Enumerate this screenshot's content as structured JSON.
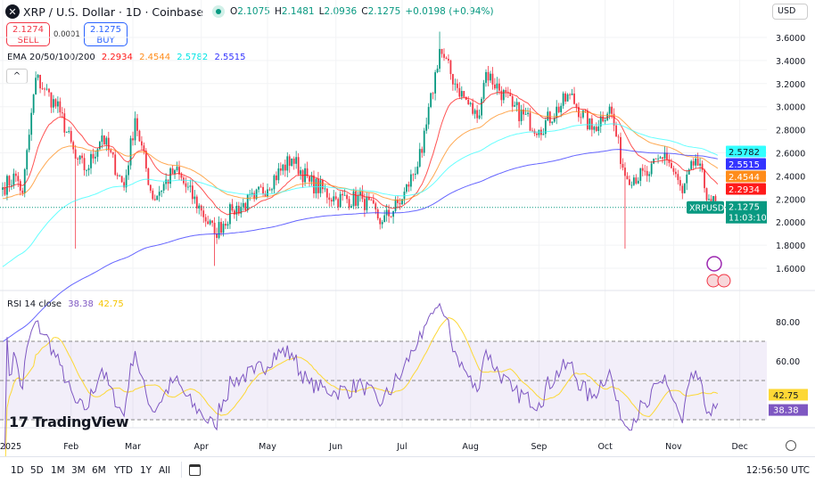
{
  "header": {
    "title": "XRP / U.S. Dollar · 1D · Coinbase",
    "open": "2.1075",
    "high": "2.1481",
    "low": "2.0936",
    "close": "2.1275",
    "change": "+0.0198 (+0.94%)",
    "o_label": "O",
    "h_label": "H",
    "l_label": "L",
    "c_label": "C"
  },
  "trade": {
    "sell_price": "2.1274",
    "sell_label": "SELL",
    "buy_price": "2.1275",
    "buy_label": "BUY",
    "spread": "0.0001"
  },
  "ema": {
    "label": "EMA 20/50/100/200",
    "ema20": "2.2934",
    "ema50": "2.4544",
    "ema100": "2.5782",
    "ema200": "2.5515"
  },
  "currency": "USD",
  "symbol_tag": "XRPUSD",
  "last_price": "2.1275",
  "countdown": "11:03:10",
  "colors": {
    "up": "#089981",
    "down": "#f23645",
    "ema20": "#ff1a1a",
    "ema50": "#ff8c1a",
    "ema100": "#33ffff",
    "ema200": "#3333ff",
    "rsi": "#7e57c2",
    "rsi_ma": "#fdd835"
  },
  "price_axis": [
    "3.6000",
    "3.4000",
    "3.2000",
    "3.0000",
    "2.8000",
    "2.6000",
    "2.4000",
    "2.2000",
    "2.0000",
    "1.8000",
    "1.6000"
  ],
  "rsi": {
    "label": "RSI 14 close",
    "value": "38.38",
    "ma": "42.75",
    "axis": [
      "80.00",
      "60.00"
    ]
  },
  "time_axis": [
    "2025",
    "Feb",
    "Mar",
    "Apr",
    "May",
    "Jun",
    "Jul",
    "Aug",
    "Sep",
    "Oct",
    "Nov",
    "Dec"
  ],
  "ranges": [
    "1D",
    "5D",
    "1M",
    "3M",
    "6M",
    "YTD",
    "1Y",
    "All"
  ],
  "clock": "12:56:50 UTC",
  "brand": "TradingView",
  "chart_data": {
    "type": "candlestick",
    "symbol": "XRPUSD",
    "ylim": [
      1.45,
      3.7
    ],
    "close_anchors": [
      [
        "2025-01-01",
        2.3
      ],
      [
        "2025-01-07",
        2.4
      ],
      [
        "2025-01-10",
        2.25
      ],
      [
        "2025-01-16",
        3.25
      ],
      [
        "2025-01-20",
        3.15
      ],
      [
        "2025-01-27",
        2.95
      ],
      [
        "2025-02-03",
        2.55
      ],
      [
        "2025-02-08",
        2.45
      ],
      [
        "2025-02-15",
        2.75
      ],
      [
        "2025-02-25",
        2.3
      ],
      [
        "2025-03-02",
        2.9
      ],
      [
        "2025-03-10",
        2.2
      ],
      [
        "2025-03-20",
        2.45
      ],
      [
        "2025-04-01",
        2.1
      ],
      [
        "2025-04-07",
        1.9
      ],
      [
        "2025-04-15",
        2.1
      ],
      [
        "2025-04-25",
        2.2
      ],
      [
        "2025-05-12",
        2.55
      ],
      [
        "2025-05-20",
        2.35
      ],
      [
        "2025-06-01",
        2.2
      ],
      [
        "2025-06-13",
        2.2
      ],
      [
        "2025-06-22",
        2.0
      ],
      [
        "2025-07-01",
        2.2
      ],
      [
        "2025-07-10",
        2.6
      ],
      [
        "2025-07-18",
        3.5
      ],
      [
        "2025-07-25",
        3.2
      ],
      [
        "2025-08-04",
        2.9
      ],
      [
        "2025-08-08",
        3.3
      ],
      [
        "2025-08-20",
        3.0
      ],
      [
        "2025-09-01",
        2.8
      ],
      [
        "2025-09-15",
        3.1
      ],
      [
        "2025-09-25",
        2.8
      ],
      [
        "2025-10-03",
        3.0
      ],
      [
        "2025-10-10",
        2.4
      ],
      [
        "2025-10-20",
        2.4
      ],
      [
        "2025-10-28",
        2.6
      ],
      [
        "2025-11-05",
        2.25
      ],
      [
        "2025-11-11",
        2.55
      ],
      [
        "2025-11-17",
        2.2
      ],
      [
        "2025-11-21",
        2.1275
      ]
    ],
    "extreme_wicks": [
      {
        "date": "2025-02-03",
        "low": 1.77
      },
      {
        "date": "2025-04-07",
        "low": 1.62
      },
      {
        "date": "2025-07-18",
        "high": 3.65
      },
      {
        "date": "2025-10-10",
        "low": 1.77
      }
    ]
  }
}
